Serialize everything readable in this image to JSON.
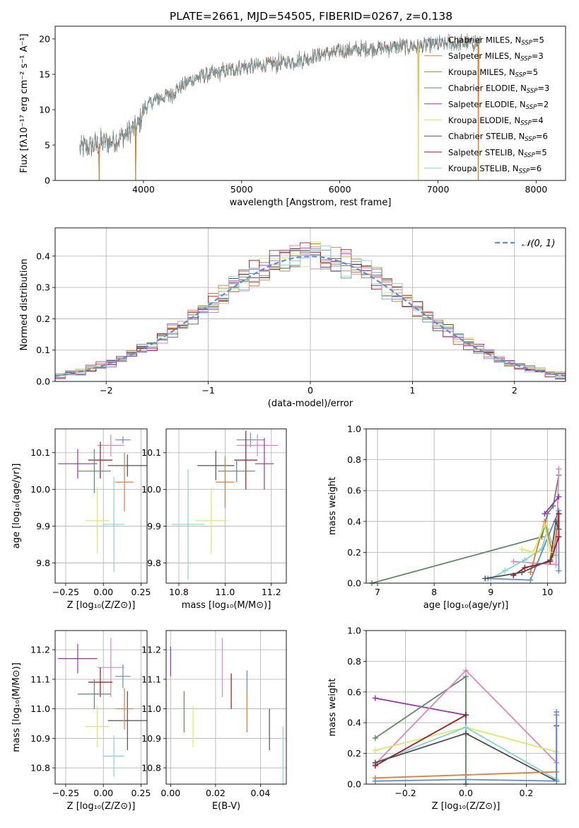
{
  "figure": {
    "title": "PLATE=2661, MJD=54505, FIBERID=0267, z=0.138"
  },
  "model_colors": [
    "#5b8ed6",
    "#e07b39",
    "#c47d2a",
    "#5f8a66",
    "#9b30b8",
    "#d9ec62",
    "#505050",
    "#a8141c",
    "#80d6d6",
    "#e085c0"
  ],
  "chart_data": [
    {
      "id": "spectrum",
      "type": "line",
      "xlabel": "wavelength [Angstrom, rest frame]",
      "ylabel": "Flux [fλ10⁻¹⁷ erg cm⁻² s⁻¹ A⁻¹]",
      "xlim": [
        3100,
        8300
      ],
      "ylim": [
        0,
        21.8
      ],
      "xticks": [
        4000,
        5000,
        6000,
        7000,
        8000
      ],
      "yticks": [
        0,
        5,
        10,
        15,
        20
      ],
      "legend_position": "upper right",
      "series": [
        {
          "name": "Chabrier MILES, N_SSP=5",
          "color": "#5b8ed6"
        },
        {
          "name": "Salpeter MILES, N_SSP=3",
          "color": "#e07b39"
        },
        {
          "name": "Kroupa MILES, N_SSP=5",
          "color": "#c47d2a"
        },
        {
          "name": "Chabrier ELODIE, N_SSP=3",
          "color": "#5f8a66"
        },
        {
          "name": "Salpeter ELODIE, N_SSP=2",
          "color": "#9b30b8"
        },
        {
          "name": "Kroupa ELODIE, N_SSP=4",
          "color": "#d9ec62"
        },
        {
          "name": "Chabrier STELIB, N_SSP=6",
          "color": "#505050"
        },
        {
          "name": "Salpeter STELIB, N_SSP=5",
          "color": "#a8141c"
        },
        {
          "name": "Kroupa STELIB, N_SSP=6",
          "color": "#80d6d6"
        }
      ],
      "continuum": {
        "x": [
          3350,
          3450,
          3550,
          3650,
          3750,
          3850,
          3950,
          4000,
          4100,
          4200,
          4300,
          4400,
          4500,
          4600,
          4700,
          4800,
          4900,
          5000,
          5200,
          5400,
          5600,
          5800,
          6000,
          6200,
          6400,
          6600,
          6800,
          7000,
          7200,
          7400
        ],
        "y": [
          4.5,
          4.8,
          5.2,
          5.5,
          5.9,
          6.8,
          7.8,
          10.0,
          11.2,
          11.8,
          12.3,
          13.5,
          14.3,
          14.8,
          15.0,
          15.3,
          15.6,
          16.0,
          16.3,
          16.6,
          17.0,
          17.8,
          18.2,
          18.5,
          18.7,
          18.9,
          19.0,
          19.2,
          19.3,
          19.4
        ]
      },
      "dips": [
        {
          "x": 3550,
          "depth": 5.0
        },
        {
          "x": 3920,
          "depth": 8.5
        },
        {
          "x": 6800,
          "depth": 19.0
        },
        {
          "x": 7410,
          "depth": 19.5
        }
      ]
    },
    {
      "id": "residuals",
      "type": "bar",
      "xlabel": "(data-model)/error",
      "ylabel": "Normed distribution",
      "xlim": [
        -2.5,
        2.5
      ],
      "ylim": [
        0,
        0.49
      ],
      "xticks": [
        -2,
        -1,
        0,
        1,
        2
      ],
      "yticks": [
        0.0,
        0.1,
        0.2,
        0.3,
        0.4
      ],
      "legend_position": "upper right",
      "reference": {
        "name": "𝒩(0, 1)",
        "color": "#5b8ed6",
        "mean": 0,
        "std": 1
      },
      "bin_width": 0.1,
      "n_histograms": 10
    },
    {
      "id": "z-age",
      "type": "scatter",
      "xlabel": "Z [log₁₀(Z/Z⊙)]",
      "ylabel": "age  [log₁₀(age/yr)]",
      "xlim": [
        -0.32,
        0.29
      ],
      "ylim": [
        9.745,
        10.165
      ],
      "xticks": [
        -0.25,
        0.0,
        0.25
      ],
      "yticks": [
        9.8,
        9.9,
        10.0,
        10.1
      ],
      "points": [
        {
          "x": 0.13,
          "y": 10.135,
          "xerr": 0.05,
          "yerr": 0.01,
          "color": "#5b8ed6"
        },
        {
          "x": 0.05,
          "y": 10.12,
          "xerr": 0.09,
          "yerr": 0.03,
          "color": "#e085c0"
        },
        {
          "x": -0.17,
          "y": 10.07,
          "xerr": 0.13,
          "yerr": 0.04,
          "color": "#9b30b8"
        },
        {
          "x": -0.02,
          "y": 10.08,
          "xerr": 0.08,
          "yerr": 0.05,
          "color": "#a8141c"
        },
        {
          "x": 0.16,
          "y": 10.065,
          "xerr": 0.13,
          "yerr": 0.03,
          "color": "#505050"
        },
        {
          "x": -0.06,
          "y": 10.05,
          "xerr": 0.11,
          "yerr": 0.06,
          "color": "#5f8a66"
        },
        {
          "x": 0.14,
          "y": 10.02,
          "xerr": 0.06,
          "yerr": 0.08,
          "color": "#e07b39"
        },
        {
          "x": -0.04,
          "y": 9.915,
          "xerr": 0.08,
          "yerr": 0.09,
          "color": "#d9ec62"
        },
        {
          "x": 0.07,
          "y": 9.905,
          "xerr": 0.07,
          "yerr": 0.13,
          "color": "#80d6d6"
        }
      ]
    },
    {
      "id": "mass-age",
      "type": "scatter",
      "xlabel": "mass [log₁₀(M/M⊙)]",
      "ylabel": "",
      "xlim": [
        10.745,
        11.265
      ],
      "ylim": [
        9.745,
        10.165
      ],
      "xticks": [
        10.8,
        11.0,
        11.2
      ],
      "yticks": [
        9.8,
        9.9,
        10.0,
        10.1
      ],
      "points": [
        {
          "x": 11.11,
          "y": 10.135,
          "xerr": 0.06,
          "yerr": 0.02,
          "color": "#5b8ed6"
        },
        {
          "x": 11.14,
          "y": 10.12,
          "xerr": 0.09,
          "yerr": 0.03,
          "color": "#e085c0"
        },
        {
          "x": 11.17,
          "y": 10.07,
          "xerr": 0.04,
          "yerr": 0.07,
          "color": "#9b30b8"
        },
        {
          "x": 11.09,
          "y": 10.08,
          "xerr": 0.05,
          "yerr": 0.08,
          "color": "#a8141c"
        },
        {
          "x": 10.96,
          "y": 10.065,
          "xerr": 0.08,
          "yerr": 0.04,
          "color": "#505050"
        },
        {
          "x": 11.05,
          "y": 10.05,
          "xerr": 0.08,
          "yerr": 0.03,
          "color": "#5f8a66"
        },
        {
          "x": 11.0,
          "y": 10.02,
          "xerr": 0.04,
          "yerr": 0.07,
          "color": "#e07b39"
        },
        {
          "x": 10.94,
          "y": 9.915,
          "xerr": 0.07,
          "yerr": 0.09,
          "color": "#d9ec62"
        },
        {
          "x": 10.84,
          "y": 9.905,
          "xerr": 0.07,
          "yerr": 0.15,
          "color": "#80d6d6"
        }
      ]
    },
    {
      "id": "weight-age",
      "type": "line",
      "xlabel": "age  [log₁₀(age/yr)]",
      "ylabel": "mass weight",
      "xlim": [
        6.8,
        10.32
      ],
      "ylim": [
        0,
        1
      ],
      "xticks": [
        7,
        8,
        9,
        10
      ],
      "yticks": [
        0.0,
        0.2,
        0.4,
        0.6,
        0.8,
        1.0
      ],
      "series": [
        {
          "color": "#5f8a66",
          "x": [
            6.9,
            9.9,
            10.0,
            10.1,
            10.2
          ],
          "y": [
            0.0,
            0.3,
            0.45,
            0.5,
            0.7
          ]
        },
        {
          "color": "#e085c0",
          "x": [
            9.4,
            10.15,
            10.2
          ],
          "y": [
            0.14,
            0.12,
            0.74
          ]
        },
        {
          "color": "#80d6d6",
          "x": [
            9.0,
            9.25,
            9.6,
            9.9,
            10.0,
            10.15
          ],
          "y": [
            0.03,
            0.08,
            0.15,
            0.22,
            0.35,
            0.18
          ]
        },
        {
          "color": "#5b8ed6",
          "x": [
            8.95,
            9.7,
            10.2,
            10.2
          ],
          "y": [
            0.03,
            0.02,
            0.47,
            0.08
          ]
        },
        {
          "color": "#e07b39",
          "x": [
            9.7,
            9.95,
            10.1,
            10.2
          ],
          "y": [
            0.07,
            0.4,
            0.18,
            0.45
          ]
        },
        {
          "color": "#a8141c",
          "x": [
            9.4,
            9.6,
            10.05,
            10.2,
            10.2
          ],
          "y": [
            0.05,
            0.1,
            0.14,
            0.3,
            0.45
          ]
        },
        {
          "color": "#505050",
          "x": [
            8.9,
            9.55,
            10.05,
            10.15,
            10.2
          ],
          "y": [
            0.03,
            0.07,
            0.15,
            0.4,
            0.35
          ]
        },
        {
          "color": "#d9ec62",
          "x": [
            9.55,
            9.75,
            9.95,
            10.05
          ],
          "y": [
            0.22,
            0.2,
            0.38,
            0.2
          ]
        },
        {
          "color": "#9b30b8",
          "x": [
            9.95,
            10.2
          ],
          "y": [
            0.45,
            0.56
          ]
        }
      ]
    },
    {
      "id": "z-mass",
      "type": "scatter",
      "xlabel": "Z [log₁₀(Z/Z⊙)]",
      "ylabel": "mass [log₁₀(M/M⊙)]",
      "xlim": [
        -0.32,
        0.29
      ],
      "ylim": [
        10.745,
        11.265
      ],
      "xticks": [
        -0.25,
        0.0,
        0.25
      ],
      "yticks": [
        10.8,
        10.9,
        11.0,
        11.1,
        11.2
      ],
      "points": [
        {
          "x": 0.13,
          "y": 11.11,
          "xerr": 0.05,
          "yerr": 0.04,
          "color": "#5b8ed6"
        },
        {
          "x": 0.05,
          "y": 11.14,
          "xerr": 0.09,
          "yerr": 0.1,
          "color": "#e085c0"
        },
        {
          "x": -0.17,
          "y": 11.17,
          "xerr": 0.13,
          "yerr": 0.05,
          "color": "#9b30b8"
        },
        {
          "x": -0.02,
          "y": 11.09,
          "xerr": 0.08,
          "yerr": 0.05,
          "color": "#a8141c"
        },
        {
          "x": 0.16,
          "y": 10.96,
          "xerr": 0.13,
          "yerr": 0.1,
          "color": "#505050"
        },
        {
          "x": -0.06,
          "y": 11.05,
          "xerr": 0.11,
          "yerr": 0.05,
          "color": "#5f8a66"
        },
        {
          "x": 0.14,
          "y": 11.0,
          "xerr": 0.06,
          "yerr": 0.07,
          "color": "#e07b39"
        },
        {
          "x": -0.04,
          "y": 10.94,
          "xerr": 0.08,
          "yerr": 0.07,
          "color": "#d9ec62"
        },
        {
          "x": 0.07,
          "y": 10.84,
          "xerr": 0.07,
          "yerr": 0.07,
          "color": "#80d6d6"
        }
      ]
    },
    {
      "id": "ebv-mass",
      "type": "scatter",
      "xlabel": "E(B-V)",
      "ylabel": "",
      "xlim": [
        -0.002,
        0.0515
      ],
      "ylim": [
        10.745,
        11.265
      ],
      "xticks": [
        0.0,
        0.02,
        0.04
      ],
      "yticks": [
        10.8,
        10.9,
        11.0,
        11.1,
        11.2
      ],
      "points": [
        {
          "x": 0.034,
          "y": 11.08,
          "yerr": 0.05,
          "color": "#5b8ed6"
        },
        {
          "x": 0.023,
          "y": 11.14,
          "yerr": 0.1,
          "color": "#e085c0"
        },
        {
          "x": 0.0,
          "y": 11.16,
          "yerr": 0.05,
          "color": "#9b30b8"
        },
        {
          "x": 0.027,
          "y": 11.06,
          "yerr": 0.06,
          "color": "#a8141c"
        },
        {
          "x": 0.044,
          "y": 10.93,
          "yerr": 0.07,
          "color": "#505050"
        },
        {
          "x": 0.006,
          "y": 10.99,
          "yerr": 0.07,
          "color": "#5f8a66"
        },
        {
          "x": 0.034,
          "y": 10.99,
          "yerr": 0.07,
          "color": "#e07b39"
        },
        {
          "x": 0.01,
          "y": 10.94,
          "yerr": 0.07,
          "color": "#d9ec62"
        },
        {
          "x": 0.05,
          "y": 10.84,
          "yerr": 0.1,
          "color": "#80d6d6"
        }
      ]
    },
    {
      "id": "weight-z",
      "type": "line",
      "xlabel": "Z [log₁₀(Z/Z⊙)]",
      "ylabel": "mass weight",
      "xlim": [
        -0.33,
        0.33
      ],
      "ylim": [
        0,
        1
      ],
      "xticks": [
        -0.2,
        0.0,
        0.2
      ],
      "yticks": [
        0.0,
        0.2,
        0.4,
        0.6,
        0.8,
        1.0
      ],
      "series": [
        {
          "color": "#9b30b8",
          "x": [
            -0.3,
            0.0
          ],
          "y": [
            0.56,
            0.45
          ]
        },
        {
          "color": "#5f8a66",
          "x": [
            -0.3,
            0.0,
            0.0
          ],
          "y": [
            0.3,
            0.7,
            0.0
          ]
        },
        {
          "color": "#e085c0",
          "x": [
            -0.3,
            0.0,
            0.3
          ],
          "y": [
            0.13,
            0.74,
            0.14
          ]
        },
        {
          "color": "#d9ec62",
          "x": [
            -0.3,
            0.0,
            0.3
          ],
          "y": [
            0.22,
            0.37,
            0.21
          ]
        },
        {
          "color": "#80d6d6",
          "x": [
            -0.3,
            0.0,
            0.3,
            0.3
          ],
          "y": [
            0.14,
            0.37,
            0.03,
            0.2
          ]
        },
        {
          "color": "#a8141c",
          "x": [
            -0.3,
            0.0,
            0.0
          ],
          "y": [
            0.12,
            0.45,
            0.45
          ]
        },
        {
          "color": "#505050",
          "x": [
            -0.3,
            0.0,
            0.3,
            0.3
          ],
          "y": [
            0.14,
            0.33,
            0.02,
            0.38
          ]
        },
        {
          "color": "#e07b39",
          "x": [
            -0.3,
            0.0,
            0.3,
            0.3
          ],
          "y": [
            0.04,
            0.06,
            0.08,
            0.45
          ]
        },
        {
          "color": "#5b8ed6",
          "x": [
            -0.3,
            0.0,
            0.3,
            0.3
          ],
          "y": [
            0.02,
            0.03,
            0.02,
            0.47
          ]
        }
      ]
    }
  ]
}
